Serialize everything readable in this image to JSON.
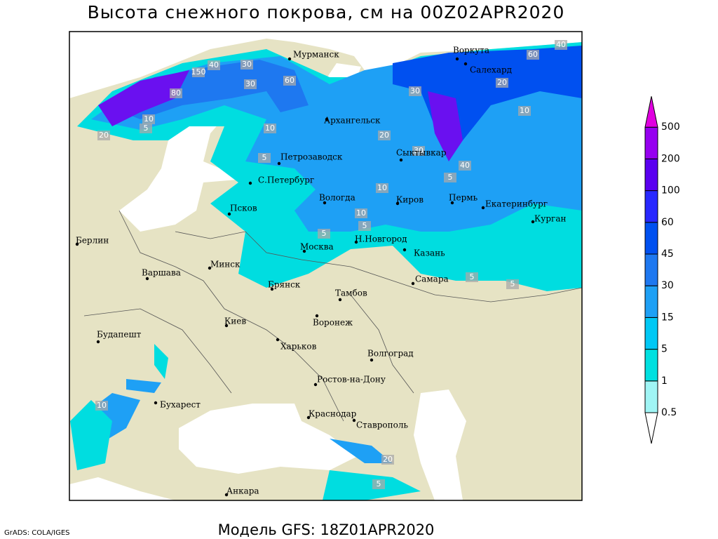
{
  "header": {
    "title": "Высота снежного покрова, см на 00Z02APR2020"
  },
  "footer": {
    "model": "Модель GFS: 18Z01APR2020",
    "credit": "GrADS: COLA/IGES"
  },
  "cities": [
    "Мурманск",
    "Воркута",
    "Салехард",
    "Архангельск",
    "Петрозаводск",
    "Сыктывкар",
    "С.Петербург",
    "Вологда",
    "Киров",
    "Пермь",
    "Екатеринбург",
    "Курган",
    "Псков",
    "Москва",
    "Н.Новгород",
    "Казань",
    "Берлин",
    "Варшава",
    "Минск",
    "Брянск",
    "Тамбов",
    "Самара",
    "Воронеж",
    "Киев",
    "Харьков",
    "Будапешт",
    "Волгоград",
    "Ростов-на-Дону",
    "Бухарест",
    "Краснодар",
    "Ставрополь",
    "Анкара"
  ],
  "contour_labels": [
    40,
    30,
    150,
    30,
    60,
    80,
    20,
    10,
    5,
    30,
    40,
    60,
    10,
    20,
    10,
    5,
    20,
    30,
    40,
    10,
    5,
    5,
    10,
    5,
    10,
    5,
    5,
    20,
    5
  ],
  "legend": {
    "levels": [
      0.5,
      1,
      5,
      15,
      30,
      45,
      60,
      100,
      200,
      500
    ],
    "colors": [
      "#ffffff",
      "#a0f5f5",
      "#00e0e0",
      "#00c8f5",
      "#1ea0f5",
      "#1e78f0",
      "#0050f0",
      "#2828ff",
      "#5a00f0",
      "#9600f0",
      "#e000e0"
    ]
  }
}
